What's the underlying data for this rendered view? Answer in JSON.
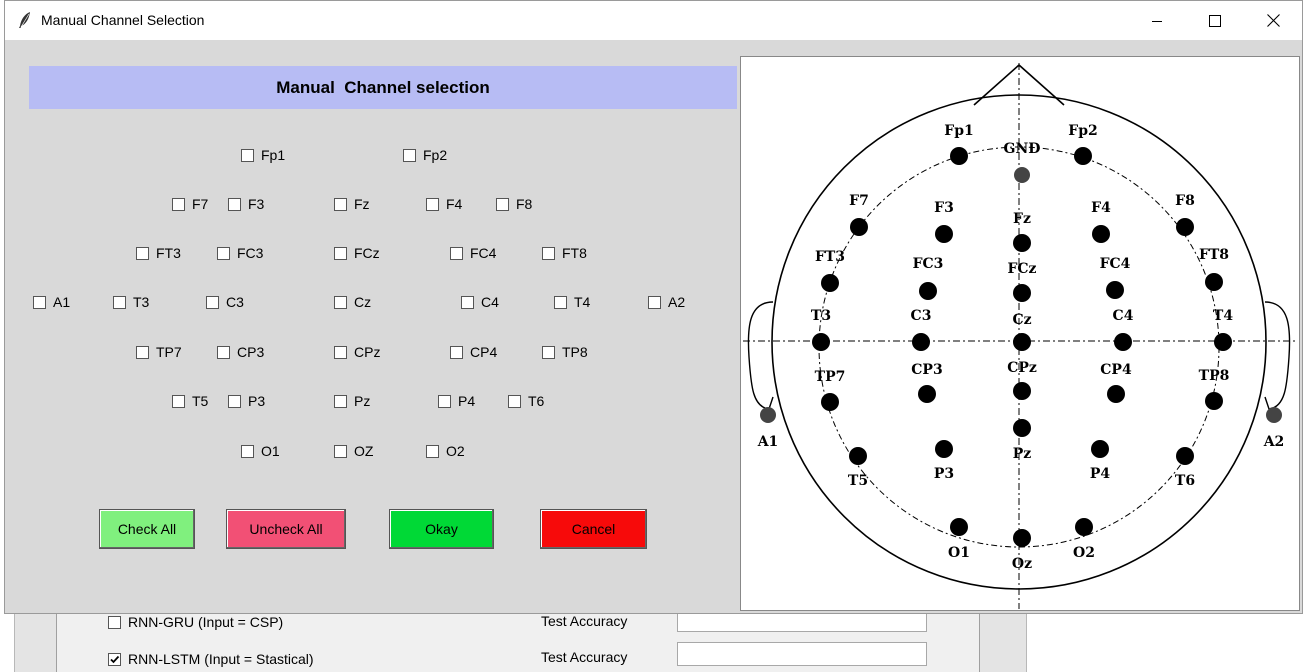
{
  "window": {
    "title": "Manual Channel Selection"
  },
  "header": {
    "title": "Manual  Channel selection"
  },
  "channels": [
    {
      "label": "Fp1"
    },
    {
      "label": "Fp2"
    },
    {
      "label": "F7"
    },
    {
      "label": "F3"
    },
    {
      "label": "Fz"
    },
    {
      "label": "F4"
    },
    {
      "label": "F8"
    },
    {
      "label": "FT3"
    },
    {
      "label": "FC3"
    },
    {
      "label": "FCz"
    },
    {
      "label": "FC4"
    },
    {
      "label": "FT8"
    },
    {
      "label": "A1"
    },
    {
      "label": "T3"
    },
    {
      "label": "C3"
    },
    {
      "label": "Cz"
    },
    {
      "label": "C4"
    },
    {
      "label": "T4"
    },
    {
      "label": "A2"
    },
    {
      "label": "TP7"
    },
    {
      "label": "CP3"
    },
    {
      "label": "CPz"
    },
    {
      "label": "CP4"
    },
    {
      "label": "TP8"
    },
    {
      "label": "T5"
    },
    {
      "label": "P3"
    },
    {
      "label": "Pz"
    },
    {
      "label": "P4"
    },
    {
      "label": "T6"
    },
    {
      "label": "O1"
    },
    {
      "label": "OZ"
    },
    {
      "label": "O2"
    }
  ],
  "buttons": {
    "check_all": "Check All",
    "uncheck_all": "Uncheck All",
    "okay": "Okay",
    "cancel": "Cancel"
  },
  "colors": {
    "header_band": "#b7bcf4",
    "check_all": "#80f07e",
    "uncheck_all": "#f25075",
    "okay": "#00d936",
    "cancel": "#f70a0a"
  },
  "diagram": {
    "electrodes": [
      "Fp1",
      "GND",
      "Fp2",
      "F7",
      "F3",
      "Fz",
      "F4",
      "F8",
      "FT3",
      "FC3",
      "FCz",
      "FC4",
      "FT8",
      "T3",
      "C3",
      "Cz",
      "C4",
      "T4",
      "TP7",
      "CP3",
      "CPz",
      "CP4",
      "TP8",
      "A1",
      "A2",
      "T5",
      "P3",
      "Pz",
      "P4",
      "T6",
      "O1",
      "Oz",
      "O2"
    ]
  },
  "background_window": {
    "rows": [
      {
        "label": "RNN-GRU (Input = CSP)",
        "checked": false,
        "acc_label": "Test Accuracy"
      },
      {
        "label": "RNN-LSTM (Input = Stastical)",
        "checked": true,
        "acc_label": "Test Accuracy"
      }
    ]
  }
}
